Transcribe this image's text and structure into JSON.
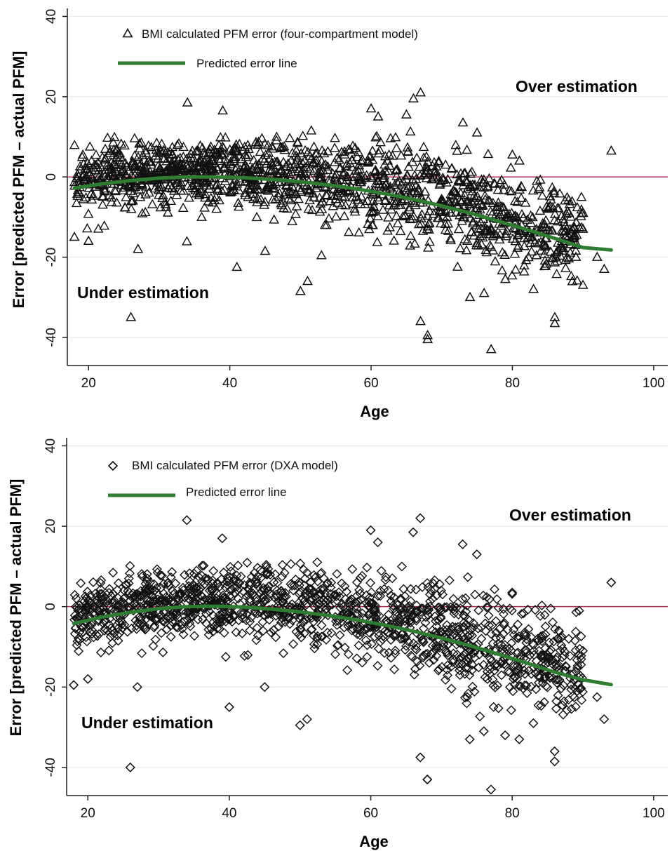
{
  "chart_data": [
    {
      "type": "scatter",
      "marker": "triangle",
      "xlabel": "Age",
      "ylabel": "Error [predicted PFM – actual PFM]",
      "xlim": [
        17,
        102
      ],
      "ylim": [
        -47,
        42
      ],
      "xticks": [
        "20",
        "40",
        "60",
        "80",
        "100"
      ],
      "yticks": [
        "-40",
        "-20",
        "0",
        "20",
        "40"
      ],
      "grid": true,
      "reference_line_y": 0,
      "legend": {
        "position": "top-left",
        "scatter_label": "BMI calculated PFM error (four-compartment model)",
        "line_label": "Predicted error line"
      },
      "annotations": {
        "over": "Over estimation",
        "under": "Under estimation"
      },
      "colors": {
        "line": "#2e7d32",
        "reference": "#b03050",
        "marker": "#111111"
      },
      "fit_line": {
        "x": [
          18,
          22,
          26,
          30,
          34,
          38,
          42,
          46,
          50,
          54,
          58,
          62,
          66,
          70,
          74,
          78,
          82,
          86,
          90,
          94
        ],
        "y": [
          -2.8,
          -1.7,
          -0.9,
          -0.3,
          0.0,
          0.0,
          -0.2,
          -0.6,
          -1.2,
          -2.0,
          -3.0,
          -4.2,
          -5.6,
          -7.2,
          -9.0,
          -11.0,
          -13.1,
          -15.3,
          -17.6,
          -18.2
        ]
      },
      "outliers": {
        "x": [
          26,
          18,
          20,
          27,
          34,
          39,
          41,
          45,
          50,
          51,
          60,
          61,
          65,
          66,
          67,
          67,
          68,
          68,
          73,
          74,
          75,
          76,
          77,
          79,
          80,
          81,
          82,
          83,
          85,
          86,
          86,
          88,
          89,
          90,
          90,
          92,
          93,
          94
        ],
        "y": [
          -35,
          -15,
          -16,
          -18,
          18.5,
          16.5,
          -22.5,
          -18.5,
          -28.5,
          -26,
          17,
          15,
          15.5,
          19.5,
          21,
          -36,
          -39.5,
          -40.5,
          13.5,
          -30,
          11,
          -29,
          -43,
          -25.5,
          5.5,
          4,
          -13,
          -28,
          -8,
          -35,
          -36.5,
          -9,
          -20,
          -9,
          -13,
          -20,
          -23,
          6.5
        ]
      }
    },
    {
      "type": "scatter",
      "marker": "diamond",
      "xlabel": "Age",
      "ylabel": "Error [predicted PFM – actual PFM]",
      "xlim": [
        17,
        102
      ],
      "ylim": [
        -47,
        42
      ],
      "xticks": [
        "20",
        "40",
        "60",
        "80",
        "100"
      ],
      "yticks": [
        "-40",
        "-20",
        "0",
        "20",
        "40"
      ],
      "grid": true,
      "reference_line_y": 0,
      "legend": {
        "position": "top-left",
        "scatter_label": "BMI calculated PFM error (DXA model)",
        "line_label": "Predicted error line"
      },
      "annotations": {
        "over": "Over estimation",
        "under": "Under estimation"
      },
      "colors": {
        "line": "#2e7d32",
        "reference": "#b03050",
        "marker": "#111111"
      },
      "fit_line": {
        "x": [
          18,
          22,
          26,
          30,
          34,
          38,
          42,
          46,
          50,
          54,
          58,
          62,
          66,
          70,
          74,
          78,
          82,
          86,
          90,
          94
        ],
        "y": [
          -4.2,
          -2.6,
          -1.4,
          -0.5,
          0.0,
          0.1,
          -0.1,
          -0.6,
          -1.3,
          -2.2,
          -3.3,
          -4.6,
          -6.1,
          -7.8,
          -9.7,
          -11.8,
          -14.0,
          -16.3,
          -18.2,
          -19.4
        ]
      },
      "outliers": {
        "x": [
          26,
          18,
          20,
          27,
          34,
          39,
          40,
          45,
          50,
          51,
          60,
          61,
          66,
          67,
          67,
          68,
          68,
          73,
          74,
          75,
          76,
          77,
          79,
          80,
          81,
          82,
          83,
          85,
          86,
          86,
          88,
          89,
          90,
          92,
          93,
          94
        ],
        "y": [
          -40,
          -19.5,
          -18,
          -20,
          21.5,
          17,
          -25,
          -20,
          -29.5,
          -28,
          19,
          16,
          18.5,
          22,
          -37.5,
          -43,
          -43,
          15.5,
          -33,
          13,
          -31,
          -45.5,
          -32,
          3.5,
          -33,
          -9,
          -29,
          -12,
          -36,
          -38.5,
          -8,
          -18,
          -11,
          -22.5,
          -28,
          6
        ]
      }
    }
  ]
}
